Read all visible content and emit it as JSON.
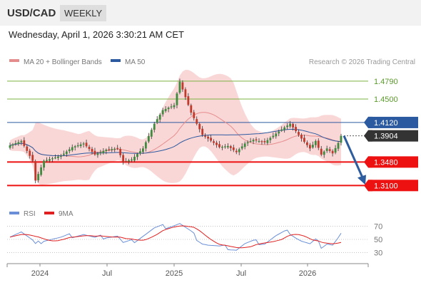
{
  "header": {
    "symbol": "USD/CAD",
    "timeframe": "WEEKLY"
  },
  "datetime": "Wednesday, April 1, 2026 3:30:21 AM CET",
  "legend": {
    "ma20": "MA 20 + Bollinger Bands",
    "ma50": "MA 50",
    "copyright": "Research © 2026 Trading Central"
  },
  "rsi_legend": {
    "rsi": "RSI",
    "ma9": "9MA"
  },
  "colors": {
    "up": "#3e8a3e",
    "down": "#c0392b",
    "band": "#f8c9c9",
    "ma20": "#e58d8d",
    "ma50": "#2c5aa0",
    "green_level": "#7cb342",
    "blue_level": "#2c5aa0",
    "red_level": "#ee1111",
    "last_label_bg": "#333333",
    "rsi": "#6a8fd8",
    "rsi_ma": "#e02020",
    "arrow": "#2e5d9f"
  },
  "chart_data": [
    {
      "type": "candlestick",
      "title": "USD/CAD WEEKLY",
      "x_tick_labels": [
        "2024",
        "Jul",
        "2025",
        "Jul",
        "2026"
      ],
      "ylim": [
        1.285,
        1.495
      ],
      "price_levels": [
        {
          "value": 1.479,
          "label": "1.4790",
          "kind": "resistance"
        },
        {
          "value": 1.45,
          "label": "1.4500",
          "kind": "resistance"
        },
        {
          "value": 1.412,
          "label": "1.4120",
          "kind": "pivot"
        },
        {
          "value": 1.3904,
          "label": "1.3904",
          "kind": "last"
        },
        {
          "value": 1.348,
          "label": "1.3480",
          "kind": "support"
        },
        {
          "value": 1.31,
          "label": "1.3100",
          "kind": "support"
        }
      ],
      "anchors": [
        [
          0,
          1.375
        ],
        [
          4,
          1.382
        ],
        [
          8,
          1.35
        ],
        [
          9,
          1.318
        ],
        [
          12,
          1.35
        ],
        [
          18,
          1.358
        ],
        [
          22,
          1.372
        ],
        [
          26,
          1.378
        ],
        [
          30,
          1.36
        ],
        [
          34,
          1.368
        ],
        [
          38,
          1.37
        ],
        [
          40,
          1.348
        ],
        [
          43,
          1.352
        ],
        [
          47,
          1.37
        ],
        [
          51,
          1.41
        ],
        [
          54,
          1.432
        ],
        [
          58,
          1.44
        ],
        [
          60,
          1.478
        ],
        [
          64,
          1.428
        ],
        [
          66,
          1.41
        ],
        [
          68,
          1.392
        ],
        [
          70,
          1.386
        ],
        [
          74,
          1.372
        ],
        [
          77,
          1.374
        ],
        [
          80,
          1.364
        ],
        [
          83,
          1.378
        ],
        [
          86,
          1.384
        ],
        [
          90,
          1.38
        ],
        [
          94,
          1.394
        ],
        [
          97,
          1.404
        ],
        [
          99,
          1.41
        ],
        [
          101,
          1.398
        ],
        [
          103,
          1.386
        ],
        [
          106,
          1.37
        ],
        [
          108,
          1.382
        ],
        [
          110,
          1.36
        ],
        [
          112,
          1.37
        ],
        [
          114,
          1.362
        ],
        [
          116,
          1.379
        ],
        [
          117,
          1.3904
        ]
      ],
      "forecast": {
        "from": 1.3904,
        "to": 1.31
      }
    },
    {
      "type": "line",
      "title": "RSI",
      "series": [
        {
          "name": "RSI"
        },
        {
          "name": "9MA"
        }
      ],
      "y_ticks": [
        30,
        50,
        70
      ],
      "ylim": [
        22,
        78
      ],
      "rsi_anchors": [
        [
          0,
          57
        ],
        [
          4,
          62
        ],
        [
          8,
          47
        ],
        [
          9,
          41
        ],
        [
          12,
          50
        ],
        [
          18,
          52
        ],
        [
          22,
          56
        ],
        [
          26,
          58
        ],
        [
          30,
          51
        ],
        [
          34,
          55
        ],
        [
          38,
          55
        ],
        [
          40,
          44
        ],
        [
          43,
          46
        ],
        [
          47,
          56
        ],
        [
          51,
          66
        ],
        [
          54,
          69
        ],
        [
          58,
          72
        ],
        [
          60,
          74
        ],
        [
          64,
          60
        ],
        [
          66,
          52
        ],
        [
          68,
          45
        ],
        [
          70,
          42
        ],
        [
          74,
          38
        ],
        [
          77,
          38
        ],
        [
          80,
          35
        ],
        [
          83,
          43
        ],
        [
          86,
          46
        ],
        [
          90,
          45
        ],
        [
          94,
          55
        ],
        [
          97,
          60
        ],
        [
          99,
          61
        ],
        [
          101,
          54
        ],
        [
          103,
          48
        ],
        [
          106,
          42
        ],
        [
          108,
          48
        ],
        [
          110,
          40
        ],
        [
          112,
          45
        ],
        [
          114,
          42
        ],
        [
          116,
          52
        ],
        [
          117,
          58
        ]
      ]
    }
  ]
}
